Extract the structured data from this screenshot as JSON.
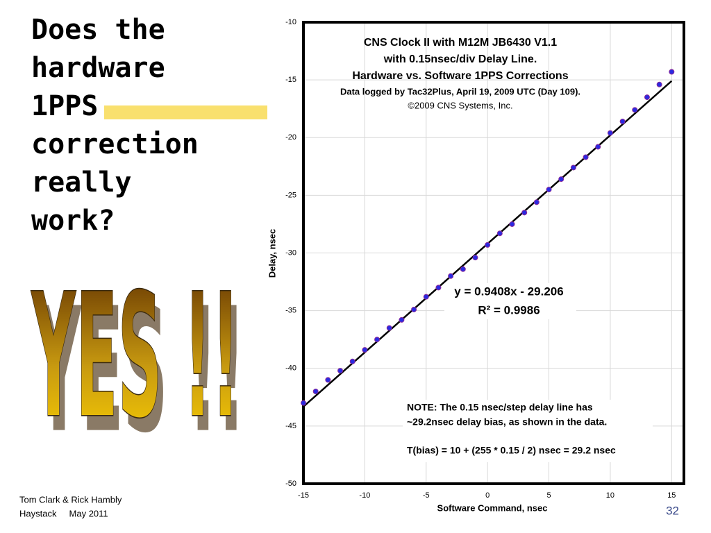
{
  "slide": {
    "heading": [
      "Does the",
      "hardware",
      "1PPS",
      "correction",
      "really",
      "work?"
    ],
    "banner": "YES !!",
    "footer": [
      "Tom Clark & Rick Hambly",
      "Haystack     May 2011"
    ],
    "page_number": "32"
  },
  "chart_data": {
    "type": "scatter",
    "title": [
      "CNS Clock II with M12M JB6430 V1.1",
      "with 0.15nsec/div Delay Line.",
      "Hardware vs. Software 1PPS Corrections"
    ],
    "subtitle": [
      "Data logged by Tac32Plus, April 19, 2009 UTC (Day 109).",
      "©2009 CNS Systems, Inc."
    ],
    "x_label": "Software Command, nsec",
    "y_label": "Delay, nsec",
    "xlim": [
      -15,
      16
    ],
    "xticks": [
      -15,
      -10,
      -5,
      0,
      5,
      10,
      15
    ],
    "ylim": [
      -50,
      -10
    ],
    "yticks": [
      -10,
      -15,
      -20,
      -25,
      -30,
      -35,
      -40,
      -45,
      -50
    ],
    "grid": true,
    "series": [
      {
        "color": "#2a2ae0",
        "x": [
          -15,
          -14,
          -13,
          -12,
          -11,
          -10,
          -9,
          -8,
          -7,
          -6,
          -5,
          -4,
          -3,
          -2,
          -1,
          0,
          1,
          2,
          3,
          4,
          5,
          6,
          7,
          8,
          9,
          10,
          11,
          12,
          13,
          14,
          15
        ],
        "y": [
          -43,
          -42,
          -41,
          -40.2,
          -39.4,
          -38.4,
          -37.5,
          -36.5,
          -35.8,
          -34.9,
          -33.8,
          -33,
          -32,
          -31.4,
          -30.4,
          -29.3,
          -28.3,
          -27.5,
          -26.5,
          -25.6,
          -24.5,
          -23.6,
          -22.6,
          -21.7,
          -20.8,
          -19.6,
          -18.6,
          -17.6,
          -16.5,
          -15.4,
          -14.3
        ]
      }
    ],
    "trendline": {
      "slope": 0.9408,
      "intercept": -29.206,
      "equation": "y = 0.9408x - 29.206",
      "r_squared": "R² = 0.9986"
    },
    "note": [
      "NOTE: The 0.15 nsec/step delay line has",
      "~29.2nsec delay bias, as shown in the data.",
      "T(bias) = 10 + (255 * 0.15 / 2) nsec = 29.2 nsec"
    ]
  }
}
